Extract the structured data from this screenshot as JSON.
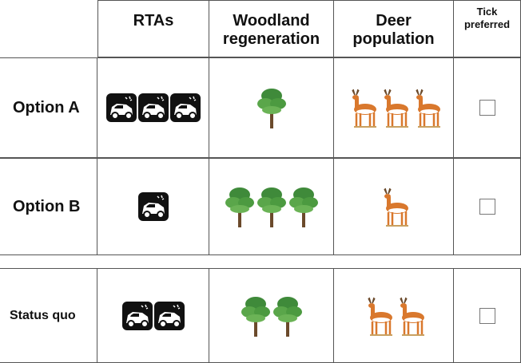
{
  "table": {
    "columns": [
      "RTAs",
      "Woodland regeneration",
      "Deer population",
      "Tick preferred"
    ],
    "rows": [
      {
        "label": "Option A",
        "rtas": 3,
        "woodland": 1,
        "deer": 3
      },
      {
        "label": "Option B",
        "rtas": 1,
        "woodland": 3,
        "deer": 1
      },
      {
        "label": "Status quo",
        "rtas": 2,
        "woodland": 2,
        "deer": 2
      }
    ]
  }
}
